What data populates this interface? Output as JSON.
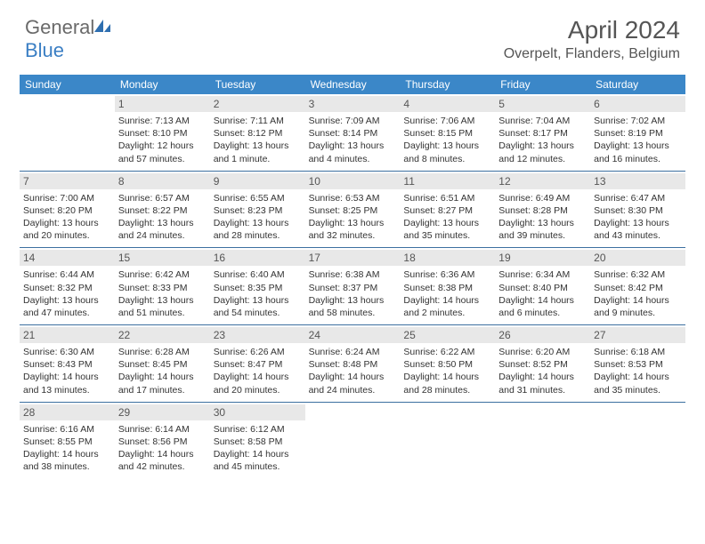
{
  "brand": {
    "name_gray": "General",
    "name_blue": "Blue",
    "icon_color": "#2f6fb0"
  },
  "header": {
    "month_title": "April 2024",
    "location": "Overpelt, Flanders, Belgium"
  },
  "colors": {
    "header_bg": "#3b87c8",
    "header_text": "#ffffff",
    "daynum_bg": "#e8e8e8",
    "daynum_text": "#555555",
    "week_border": "#3b6f9f",
    "body_text": "#333333"
  },
  "day_names": [
    "Sunday",
    "Monday",
    "Tuesday",
    "Wednesday",
    "Thursday",
    "Friday",
    "Saturday"
  ],
  "weeks": [
    [
      {
        "n": "",
        "sr": "",
        "ss": "",
        "dl": ""
      },
      {
        "n": "1",
        "sr": "Sunrise: 7:13 AM",
        "ss": "Sunset: 8:10 PM",
        "dl": "Daylight: 12 hours and 57 minutes."
      },
      {
        "n": "2",
        "sr": "Sunrise: 7:11 AM",
        "ss": "Sunset: 8:12 PM",
        "dl": "Daylight: 13 hours and 1 minute."
      },
      {
        "n": "3",
        "sr": "Sunrise: 7:09 AM",
        "ss": "Sunset: 8:14 PM",
        "dl": "Daylight: 13 hours and 4 minutes."
      },
      {
        "n": "4",
        "sr": "Sunrise: 7:06 AM",
        "ss": "Sunset: 8:15 PM",
        "dl": "Daylight: 13 hours and 8 minutes."
      },
      {
        "n": "5",
        "sr": "Sunrise: 7:04 AM",
        "ss": "Sunset: 8:17 PM",
        "dl": "Daylight: 13 hours and 12 minutes."
      },
      {
        "n": "6",
        "sr": "Sunrise: 7:02 AM",
        "ss": "Sunset: 8:19 PM",
        "dl": "Daylight: 13 hours and 16 minutes."
      }
    ],
    [
      {
        "n": "7",
        "sr": "Sunrise: 7:00 AM",
        "ss": "Sunset: 8:20 PM",
        "dl": "Daylight: 13 hours and 20 minutes."
      },
      {
        "n": "8",
        "sr": "Sunrise: 6:57 AM",
        "ss": "Sunset: 8:22 PM",
        "dl": "Daylight: 13 hours and 24 minutes."
      },
      {
        "n": "9",
        "sr": "Sunrise: 6:55 AM",
        "ss": "Sunset: 8:23 PM",
        "dl": "Daylight: 13 hours and 28 minutes."
      },
      {
        "n": "10",
        "sr": "Sunrise: 6:53 AM",
        "ss": "Sunset: 8:25 PM",
        "dl": "Daylight: 13 hours and 32 minutes."
      },
      {
        "n": "11",
        "sr": "Sunrise: 6:51 AM",
        "ss": "Sunset: 8:27 PM",
        "dl": "Daylight: 13 hours and 35 minutes."
      },
      {
        "n": "12",
        "sr": "Sunrise: 6:49 AM",
        "ss": "Sunset: 8:28 PM",
        "dl": "Daylight: 13 hours and 39 minutes."
      },
      {
        "n": "13",
        "sr": "Sunrise: 6:47 AM",
        "ss": "Sunset: 8:30 PM",
        "dl": "Daylight: 13 hours and 43 minutes."
      }
    ],
    [
      {
        "n": "14",
        "sr": "Sunrise: 6:44 AM",
        "ss": "Sunset: 8:32 PM",
        "dl": "Daylight: 13 hours and 47 minutes."
      },
      {
        "n": "15",
        "sr": "Sunrise: 6:42 AM",
        "ss": "Sunset: 8:33 PM",
        "dl": "Daylight: 13 hours and 51 minutes."
      },
      {
        "n": "16",
        "sr": "Sunrise: 6:40 AM",
        "ss": "Sunset: 8:35 PM",
        "dl": "Daylight: 13 hours and 54 minutes."
      },
      {
        "n": "17",
        "sr": "Sunrise: 6:38 AM",
        "ss": "Sunset: 8:37 PM",
        "dl": "Daylight: 13 hours and 58 minutes."
      },
      {
        "n": "18",
        "sr": "Sunrise: 6:36 AM",
        "ss": "Sunset: 8:38 PM",
        "dl": "Daylight: 14 hours and 2 minutes."
      },
      {
        "n": "19",
        "sr": "Sunrise: 6:34 AM",
        "ss": "Sunset: 8:40 PM",
        "dl": "Daylight: 14 hours and 6 minutes."
      },
      {
        "n": "20",
        "sr": "Sunrise: 6:32 AM",
        "ss": "Sunset: 8:42 PM",
        "dl": "Daylight: 14 hours and 9 minutes."
      }
    ],
    [
      {
        "n": "21",
        "sr": "Sunrise: 6:30 AM",
        "ss": "Sunset: 8:43 PM",
        "dl": "Daylight: 14 hours and 13 minutes."
      },
      {
        "n": "22",
        "sr": "Sunrise: 6:28 AM",
        "ss": "Sunset: 8:45 PM",
        "dl": "Daylight: 14 hours and 17 minutes."
      },
      {
        "n": "23",
        "sr": "Sunrise: 6:26 AM",
        "ss": "Sunset: 8:47 PM",
        "dl": "Daylight: 14 hours and 20 minutes."
      },
      {
        "n": "24",
        "sr": "Sunrise: 6:24 AM",
        "ss": "Sunset: 8:48 PM",
        "dl": "Daylight: 14 hours and 24 minutes."
      },
      {
        "n": "25",
        "sr": "Sunrise: 6:22 AM",
        "ss": "Sunset: 8:50 PM",
        "dl": "Daylight: 14 hours and 28 minutes."
      },
      {
        "n": "26",
        "sr": "Sunrise: 6:20 AM",
        "ss": "Sunset: 8:52 PM",
        "dl": "Daylight: 14 hours and 31 minutes."
      },
      {
        "n": "27",
        "sr": "Sunrise: 6:18 AM",
        "ss": "Sunset: 8:53 PM",
        "dl": "Daylight: 14 hours and 35 minutes."
      }
    ],
    [
      {
        "n": "28",
        "sr": "Sunrise: 6:16 AM",
        "ss": "Sunset: 8:55 PM",
        "dl": "Daylight: 14 hours and 38 minutes."
      },
      {
        "n": "29",
        "sr": "Sunrise: 6:14 AM",
        "ss": "Sunset: 8:56 PM",
        "dl": "Daylight: 14 hours and 42 minutes."
      },
      {
        "n": "30",
        "sr": "Sunrise: 6:12 AM",
        "ss": "Sunset: 8:58 PM",
        "dl": "Daylight: 14 hours and 45 minutes."
      },
      {
        "n": "",
        "sr": "",
        "ss": "",
        "dl": ""
      },
      {
        "n": "",
        "sr": "",
        "ss": "",
        "dl": ""
      },
      {
        "n": "",
        "sr": "",
        "ss": "",
        "dl": ""
      },
      {
        "n": "",
        "sr": "",
        "ss": "",
        "dl": ""
      }
    ]
  ]
}
